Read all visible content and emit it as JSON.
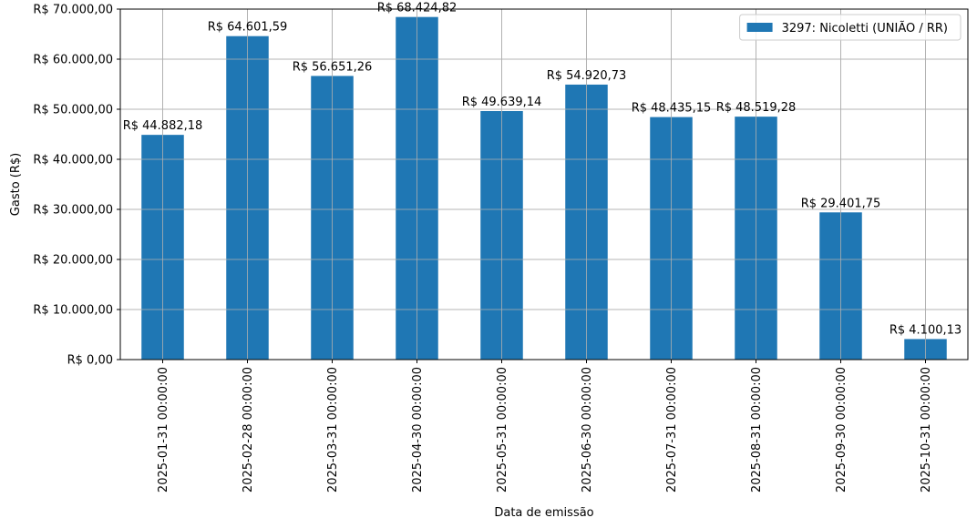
{
  "chart_data": {
    "type": "bar",
    "xlabel": "Data de emissão",
    "ylabel": "Gasto (R$)",
    "ylim": [
      0,
      70000
    ],
    "yticks": [
      0,
      10000,
      20000,
      30000,
      40000,
      50000,
      60000,
      70000
    ],
    "ytick_labels": [
      "R$ 0,00",
      "R$ 10.000,00",
      "R$ 20.000,00",
      "R$ 30.000,00",
      "R$ 40.000,00",
      "R$ 50.000,00",
      "R$ 60.000,00",
      "R$ 70.000,00"
    ],
    "grid": true,
    "legend_position": "top-right",
    "categories": [
      "2025-01-31 00:00:00",
      "2025-02-28 00:00:00",
      "2025-03-31 00:00:00",
      "2025-04-30 00:00:00",
      "2025-05-31 00:00:00",
      "2025-06-30 00:00:00",
      "2025-07-31 00:00:00",
      "2025-08-31 00:00:00",
      "2025-09-30 00:00:00",
      "2025-10-31 00:00:00"
    ],
    "series": [
      {
        "name": "3297: Nicoletti (UNIÃO / RR)",
        "color": "#1f77b4",
        "values": [
          44882.18,
          64601.59,
          56651.26,
          68424.82,
          49639.14,
          54920.73,
          48435.15,
          48519.28,
          29401.75,
          4100.13
        ],
        "value_labels": [
          "R$ 44.882,18",
          "R$ 64.601,59",
          "R$ 56.651,26",
          "R$ 68.424,82",
          "R$ 49.639,14",
          "R$ 54.920,73",
          "R$ 48.435,15",
          "R$ 48.519,28",
          "R$ 29.401,75",
          "R$ 4.100,13"
        ]
      }
    ]
  }
}
